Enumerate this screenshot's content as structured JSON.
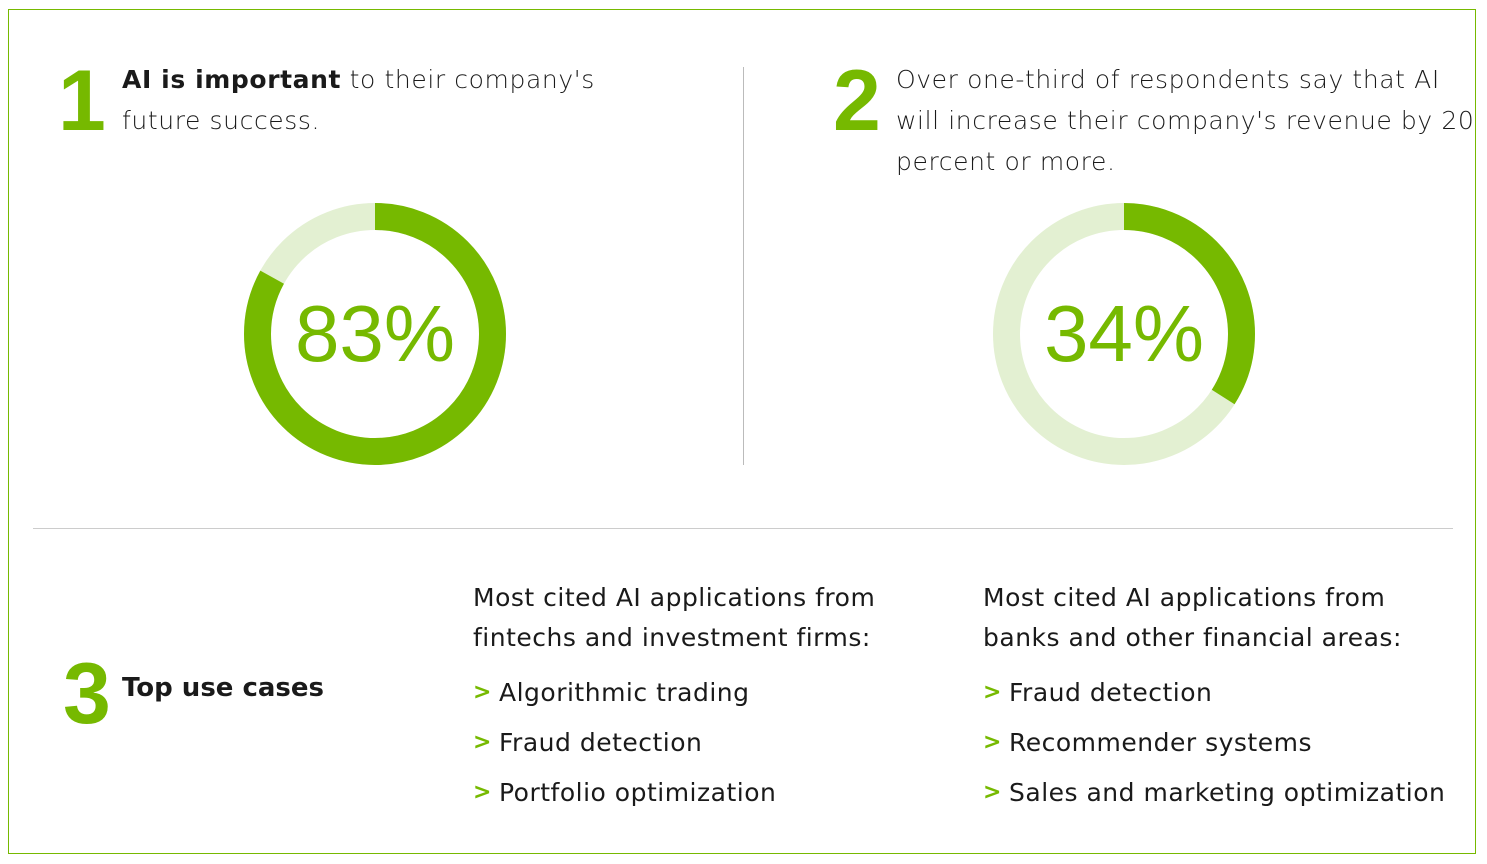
{
  "colors": {
    "accent": "#76b900",
    "track": "#e3f0d2"
  },
  "stat1": {
    "number": "1",
    "bold": "AI is important",
    "rest": " to their company's",
    "line2": "future success.",
    "percent_label": "83%",
    "percent": 83
  },
  "stat2": {
    "number": "2",
    "line1": "Over one-third of respondents say that AI",
    "line2": "will increase their company's revenue by 20",
    "line3": "percent or more.",
    "percent_label": "34%",
    "percent": 34
  },
  "section3": {
    "number": "3",
    "title": "Top use cases",
    "columns": [
      {
        "heading1": "Most cited AI applications from",
        "heading2": "fintechs and investment firms:",
        "items": [
          "Algorithmic trading",
          "Fraud detection",
          "Portfolio optimization"
        ]
      },
      {
        "heading1": "Most cited AI applications from",
        "heading2": "banks and other financial areas:",
        "items": [
          "Fraud detection",
          "Recommender systems",
          "Sales and marketing optimization"
        ]
      }
    ],
    "bullet": ">"
  }
}
